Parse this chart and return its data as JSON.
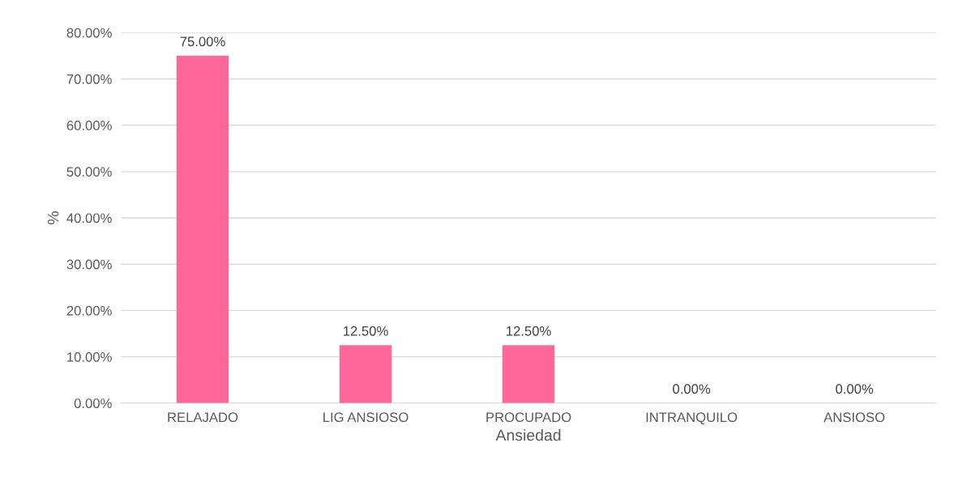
{
  "chart_data": {
    "type": "bar",
    "xlabel": "Ansiedad",
    "ylabel": "%",
    "categories": [
      "RELAJADO",
      "LIG ANSIOSO",
      "PROCUPADO",
      "INTRANQUILO",
      "ANSIOSO"
    ],
    "values": [
      75,
      12.5,
      12.5,
      0,
      0
    ],
    "color": "#ff6699",
    "value_labels": [
      "75.00%",
      "12.50%",
      "12.50%",
      "0.00%",
      "0.00%"
    ],
    "ylim": [
      0,
      80
    ],
    "yticks": [
      {
        "value": 0,
        "label": "0.00%"
      },
      {
        "value": 10,
        "label": "10.00%"
      },
      {
        "value": 20,
        "label": "20.00%"
      },
      {
        "value": 30,
        "label": "30.00%"
      },
      {
        "value": 40,
        "label": "40.00%"
      },
      {
        "value": 50,
        "label": "50.00%"
      },
      {
        "value": 60,
        "label": "60.00%"
      },
      {
        "value": 70,
        "label": "70.00%"
      },
      {
        "value": 80,
        "label": "80.00%"
      }
    ],
    "grid": "y",
    "legend": false
  }
}
